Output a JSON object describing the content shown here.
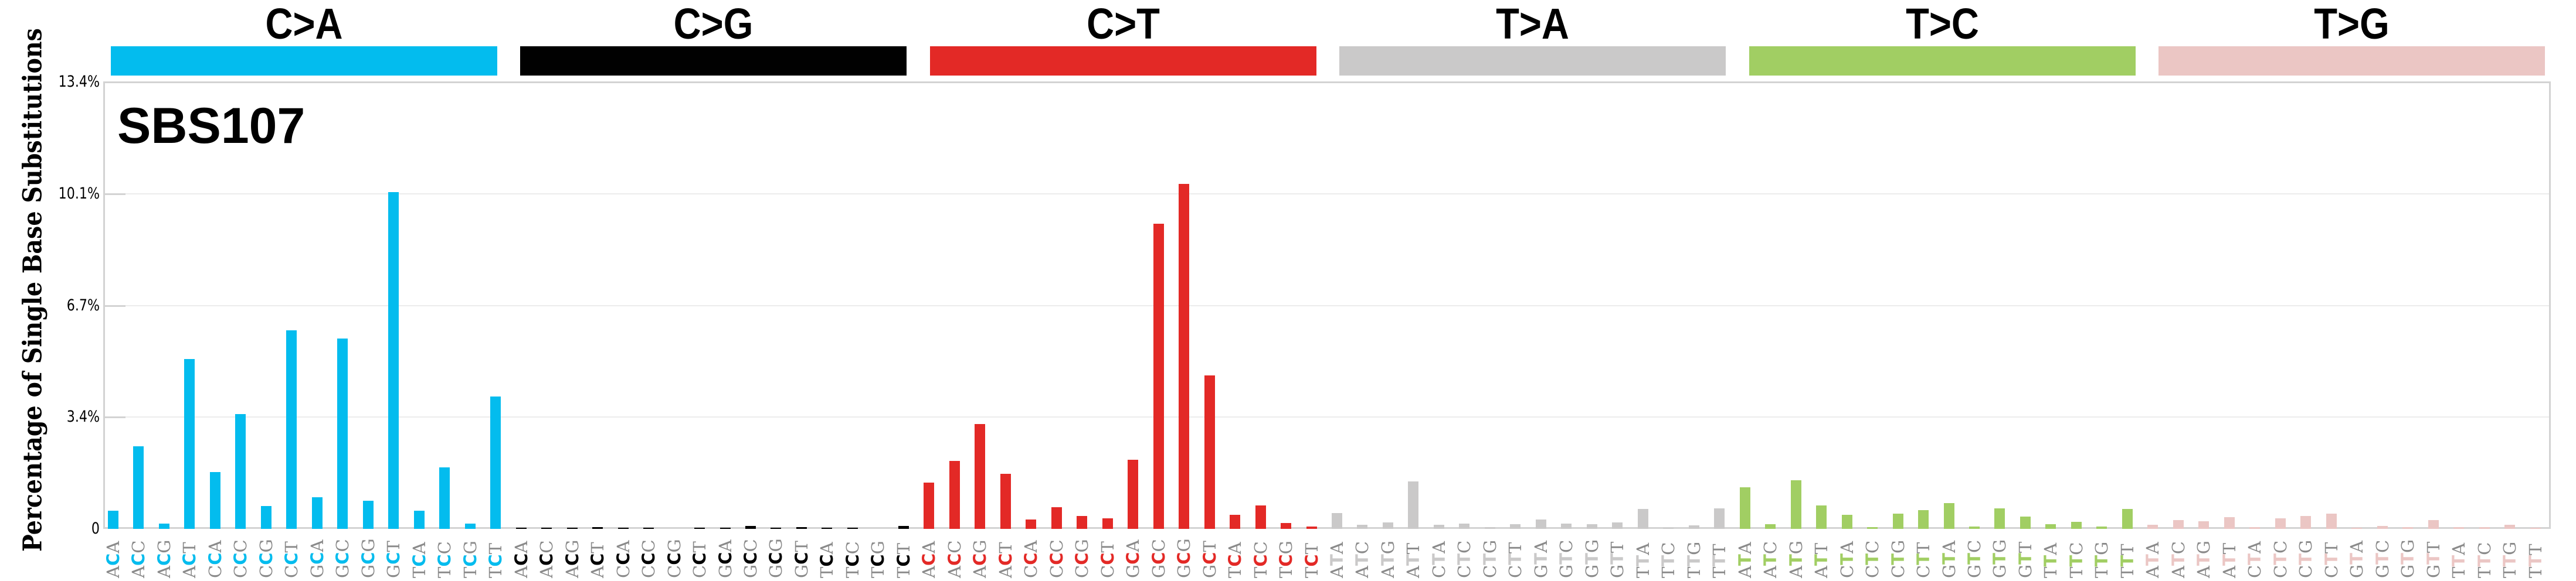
{
  "y_axis": {
    "title": "Percentage of Single Base Substitutions",
    "ticks": [
      "0",
      "3.4%",
      "6.7%",
      "10.1%",
      "13.4%"
    ],
    "tick_values": [
      0,
      3.35,
      6.7,
      10.05,
      13.4
    ]
  },
  "signature_title": "SBS107",
  "groups": [
    {
      "label": "C>A",
      "color": "#03bcee",
      "mid": "C"
    },
    {
      "label": "C>G",
      "color": "#010101",
      "mid": "C"
    },
    {
      "label": "C>T",
      "color": "#e32926",
      "mid": "C"
    },
    {
      "label": "T>A",
      "color": "#cac9c9",
      "mid": "T"
    },
    {
      "label": "T>C",
      "color": "#a1ce63",
      "mid": "T"
    },
    {
      "label": "T>G",
      "color": "#ebc6c4",
      "mid": "T"
    }
  ],
  "chart_data": {
    "type": "bar",
    "title": "SBS107",
    "xlabel": "",
    "ylabel": "Percentage of Single Base Substitutions",
    "ylim": [
      0,
      13.4
    ],
    "yticks": [
      "0",
      "3.4%",
      "6.7%",
      "10.1%",
      "13.4%"
    ],
    "grid": true,
    "legend": "category bars on top: C>A, C>G, C>T, T>A, T>C, T>G",
    "categories": [
      "A[C>A]A",
      "A[C>A]C",
      "A[C>A]G",
      "A[C>A]T",
      "C[C>A]A",
      "C[C>A]C",
      "C[C>A]G",
      "C[C>A]T",
      "G[C>A]A",
      "G[C>A]C",
      "G[C>A]G",
      "G[C>A]T",
      "T[C>A]A",
      "T[C>A]C",
      "T[C>A]G",
      "T[C>A]T",
      "A[C>G]A",
      "A[C>G]C",
      "A[C>G]G",
      "A[C>G]T",
      "C[C>G]A",
      "C[C>G]C",
      "C[C>G]G",
      "C[C>G]T",
      "G[C>G]A",
      "G[C>G]C",
      "G[C>G]G",
      "G[C>G]T",
      "T[C>G]A",
      "T[C>G]C",
      "T[C>G]G",
      "T[C>G]T",
      "A[C>T]A",
      "A[C>T]C",
      "A[C>T]G",
      "A[C>T]T",
      "C[C>T]A",
      "C[C>T]C",
      "C[C>T]G",
      "C[C>T]T",
      "G[C>T]A",
      "G[C>T]C",
      "G[C>T]G",
      "G[C>T]T",
      "T[C>T]A",
      "T[C>T]C",
      "T[C>T]G",
      "T[C>T]T",
      "A[T>A]A",
      "A[T>A]C",
      "A[T>A]G",
      "A[T>A]T",
      "C[T>A]A",
      "C[T>A]C",
      "C[T>A]G",
      "C[T>A]T",
      "G[T>A]A",
      "G[T>A]C",
      "G[T>A]G",
      "G[T>A]T",
      "T[T>A]A",
      "T[T>A]C",
      "T[T>A]G",
      "T[T>A]T",
      "A[T>C]A",
      "A[T>C]C",
      "A[T>C]G",
      "A[T>C]T",
      "C[T>C]A",
      "C[T>C]C",
      "C[T>C]G",
      "C[T>C]T",
      "G[T>C]A",
      "G[T>C]C",
      "G[T>C]G",
      "G[T>C]T",
      "T[T>C]A",
      "T[T>C]C",
      "T[T>C]G",
      "T[T>C]T",
      "A[T>G]A",
      "A[T>G]C",
      "A[T>G]G",
      "A[T>G]T",
      "C[T>G]A",
      "C[T>G]C",
      "C[T>G]G",
      "C[T>G]T",
      "G[T>G]A",
      "G[T>G]C",
      "G[T>G]G",
      "G[T>G]T",
      "T[T>G]A",
      "T[T>G]C",
      "T[T>G]G",
      "T[T>G]T"
    ],
    "series": [
      {
        "name": "SBS107",
        "values": [
          0.55,
          2.48,
          0.16,
          5.1,
          1.71,
          3.45,
          0.69,
          5.95,
          0.95,
          5.7,
          0.85,
          10.1,
          0.54,
          1.84,
          0.16,
          3.97,
          0.01,
          0.01,
          0.01,
          0.06,
          0.01,
          0.03,
          0.0,
          0.01,
          0.01,
          0.08,
          0.01,
          0.05,
          0.04,
          0.03,
          0.0,
          0.08,
          1.39,
          2.04,
          3.15,
          1.65,
          0.28,
          0.65,
          0.39,
          0.31,
          2.07,
          9.15,
          10.34,
          4.61,
          0.42,
          0.7,
          0.18,
          0.07,
          0.48,
          0.12,
          0.19,
          1.43,
          0.12,
          0.16,
          0.05,
          0.14,
          0.28,
          0.16,
          0.14,
          0.19,
          0.6,
          0.04,
          0.11,
          0.62,
          1.24,
          0.14,
          1.45,
          0.71,
          0.42,
          0.05,
          0.46,
          0.56,
          0.78,
          0.07,
          0.62,
          0.37,
          0.14,
          0.21,
          0.07,
          0.59,
          0.13,
          0.27,
          0.22,
          0.36,
          0.06,
          0.31,
          0.38,
          0.45,
          0.03,
          0.08,
          0.06,
          0.27,
          0.06,
          0.05,
          0.12,
          0.01
        ]
      }
    ],
    "x_tick_labels": [
      "ACA",
      "ACC",
      "ACG",
      "ACT",
      "CCA",
      "CCC",
      "CCG",
      "CCT",
      "GCA",
      "GCC",
      "GCG",
      "GCT",
      "TCA",
      "TCC",
      "TCG",
      "TCT",
      "ACA",
      "ACC",
      "ACG",
      "ACT",
      "CCA",
      "CCC",
      "CCG",
      "CCT",
      "GCA",
      "GCC",
      "GCG",
      "GCT",
      "TCA",
      "TCC",
      "TCG",
      "TCT",
      "ACA",
      "ACC",
      "ACG",
      "ACT",
      "CCA",
      "CCC",
      "CCG",
      "CCT",
      "GCA",
      "GCC",
      "GCG",
      "GCT",
      "TCA",
      "TCC",
      "TCG",
      "TCT",
      "ATA",
      "ATC",
      "ATG",
      "ATT",
      "CTA",
      "CTC",
      "CTG",
      "CTT",
      "GTA",
      "GTC",
      "GTG",
      "GTT",
      "TTA",
      "TTC",
      "TTG",
      "TTT",
      "ATA",
      "ATC",
      "ATG",
      "ATT",
      "CTA",
      "CTC",
      "CTG",
      "CTT",
      "GTA",
      "GTC",
      "GTG",
      "GTT",
      "TTA",
      "TTC",
      "TTG",
      "TTT",
      "ATA",
      "ATC",
      "ATG",
      "ATT",
      "CTA",
      "CTC",
      "CTG",
      "CTT",
      "GTA",
      "GTC",
      "GTG",
      "GTT",
      "TTA",
      "TTC",
      "TTG",
      "TTT"
    ]
  }
}
